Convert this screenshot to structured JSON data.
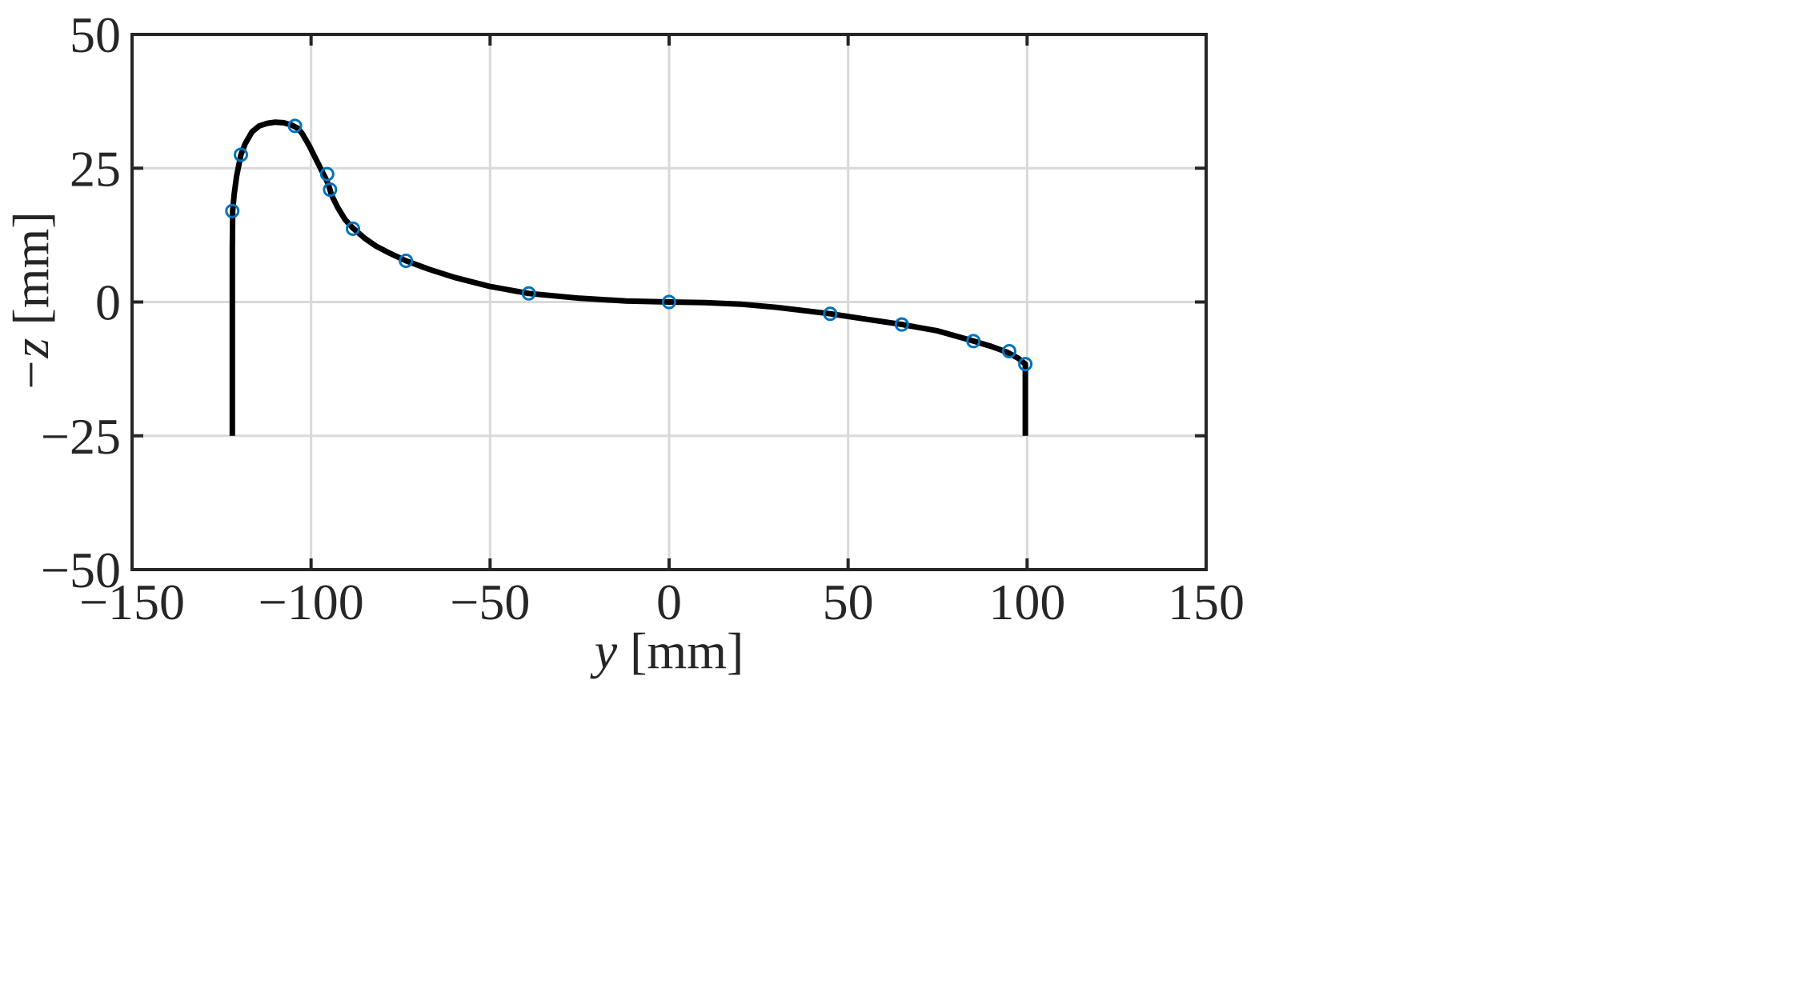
{
  "chart_data": {
    "type": "line",
    "title": "",
    "xlabel": "y [mm]",
    "ylabel": "−z [mm]",
    "xlabel_var": "y",
    "xlabel_unit": " [mm]",
    "ylabel_var": "−z",
    "ylabel_unit": " [mm]",
    "xlim": [
      -150,
      150
    ],
    "ylim": [
      -50,
      50
    ],
    "xticks": [
      -150,
      -100,
      -50,
      0,
      50,
      100,
      150
    ],
    "yticks": [
      -50,
      -25,
      0,
      25,
      50
    ],
    "xtick_labels": [
      "−150",
      "−100",
      "−50",
      "0",
      "50",
      "100",
      "150"
    ],
    "ytick_labels": [
      "−50",
      "−25",
      "0",
      "25",
      "50"
    ],
    "grid": true,
    "line_color": "#000000",
    "marker_color": "#0072bd",
    "series": [
      {
        "style": "line",
        "x": [
          -122,
          -122,
          -121.9,
          -121.5,
          -120.8,
          -119.6,
          -118.4,
          -116.5,
          -114.5,
          -112.2,
          -110,
          -107.7,
          -105.5,
          -103.8,
          -102.5,
          -100.5,
          -98.5,
          -97,
          -95.5,
          -94.8,
          -94.3,
          -92.5,
          -90.5,
          -88.3,
          -85,
          -82,
          -78,
          -73.5,
          -67,
          -60,
          -50,
          -39.2,
          -25,
          -12,
          0,
          10,
          20,
          30,
          45,
          55,
          65,
          75,
          85,
          90,
          94.5,
          97.5,
          99.5,
          99.5
        ],
        "y": [
          -25,
          10,
          17,
          20,
          23.5,
          27.5,
          29.6,
          31.8,
          32.9,
          33.4,
          33.6,
          33.5,
          33.1,
          32.5,
          31.5,
          29.2,
          26.5,
          24.5,
          22.5,
          21.2,
          20,
          17.6,
          15.4,
          13.8,
          11.9,
          10.5,
          9.1,
          7.7,
          6.1,
          4.6,
          2.9,
          1.6,
          0.7,
          0.2,
          0,
          -0.1,
          -0.4,
          -1,
          -2.2,
          -3.2,
          -4.2,
          -5.4,
          -7.3,
          -8.3,
          -9.4,
          -10.5,
          -11.6,
          -25
        ]
      },
      {
        "style": "markers",
        "x": [
          -122,
          -119.6,
          -104.5,
          -95.5,
          -94.7,
          -88.3,
          -73.5,
          -39.2,
          0,
          45,
          65,
          85,
          95,
          99.5
        ],
        "y": [
          17,
          27.5,
          32.9,
          23.9,
          21,
          13.7,
          7.7,
          1.6,
          0,
          -2.2,
          -4.2,
          -7.3,
          -9.2,
          -11.6
        ]
      }
    ]
  }
}
